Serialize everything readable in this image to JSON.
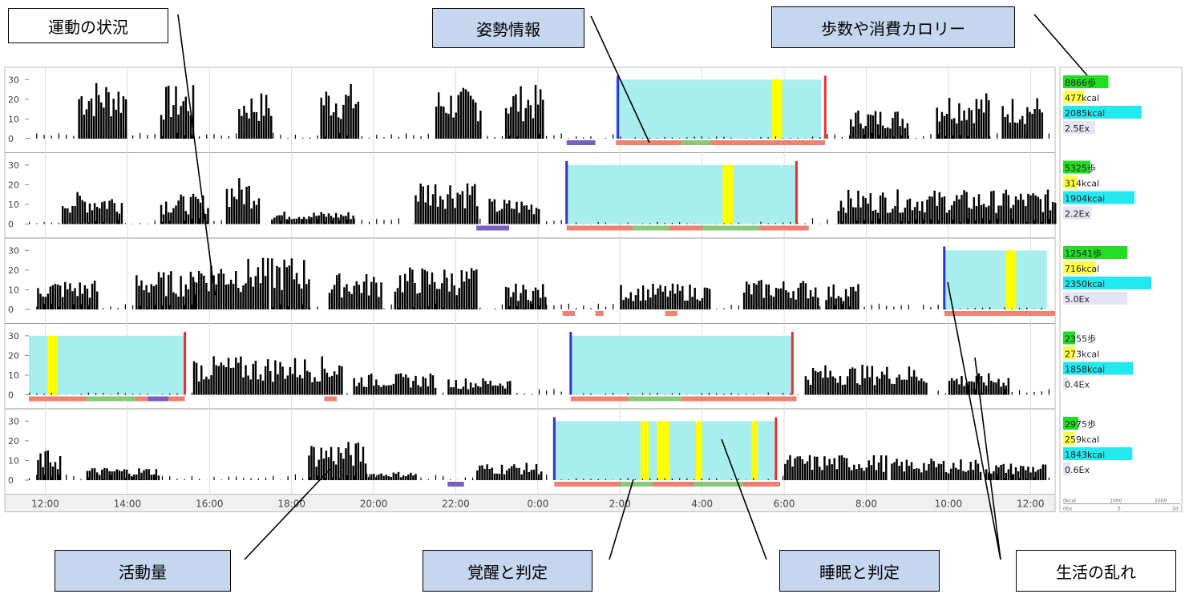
{
  "callouts": {
    "exercise_status": "運動の状況",
    "posture_info": "姿勢情報",
    "steps_calories": "歩数や消費カロリー",
    "activity_amount": "活動量",
    "wake_judgment": "覚醒と判定",
    "sleep_judgment": "睡眠と判定",
    "life_disorder": "生活の乱れ"
  },
  "colors": {
    "activity": "#000000",
    "sleep_band": "#a8eeee",
    "wake_event": "#ffff00",
    "sleep_start": "#3333cc",
    "sleep_end": "#e83030",
    "posture_lying": "#f08070",
    "posture_sitting": "#88c878",
    "posture_other": "#7a5fc0",
    "steps_bar": "#22dd22",
    "active_kcal_bar": "#ffff44",
    "total_kcal_bar": "#22e8f0",
    "ex_bar": "#e4e4f4"
  },
  "legend_scale": {
    "left": "0kcal",
    "mid": "1000",
    "right": "2000",
    "sub_left": "0Ex",
    "sub_mid": "5",
    "sub_right": "10"
  },
  "chart_data": {
    "type": "bar",
    "x_axis_ticks": [
      "12:00",
      "14:00",
      "16:00",
      "18:00",
      "20:00",
      "22:00",
      "0:00",
      "2:00",
      "4:00",
      "6:00",
      "8:00",
      "10:00",
      "12:00"
    ],
    "x_range_hours": [
      11.6,
      36.6
    ],
    "y_ticks": [
      "30",
      "20",
      "10",
      "0"
    ],
    "ylim": [
      0,
      33
    ],
    "grid": true,
    "days": [
      {
        "steps": "8866歩",
        "active_kcal": "477kcal",
        "total_kcal": "2085kcal",
        "ex": "2.5Ex",
        "steps_value": 8866,
        "active_kcal_value": 477,
        "total_kcal_value": 2085,
        "ex_value": 2.5,
        "sleep": [
          25.9,
          30.9
        ],
        "sleep_start_marker": 25.95,
        "sleep_end_marker": 31.0,
        "wake_events": [
          [
            29.7,
            29.95
          ]
        ],
        "activity_bursts": [
          [
            12.8,
            1.2,
            28
          ],
          [
            14.8,
            0.8,
            25
          ],
          [
            16.7,
            0.8,
            22
          ],
          [
            18.7,
            0.9,
            26
          ],
          [
            21.5,
            1.1,
            24
          ],
          [
            23.2,
            0.9,
            25
          ],
          [
            31.6,
            1.4,
            14
          ],
          [
            33.7,
            1.3,
            22
          ],
          [
            35.3,
            1.0,
            20
          ]
        ],
        "posture": [
          [
            24.7,
            25.4,
            "other"
          ],
          [
            25.9,
            31.0,
            "lying"
          ],
          [
            27.5,
            28.2,
            "sitting"
          ]
        ]
      },
      {
        "steps": "5325歩",
        "active_kcal": "314kcal",
        "total_kcal": "1904kcal",
        "ex": "2.2Ex",
        "steps_value": 5325,
        "active_kcal_value": 314,
        "total_kcal_value": 1904,
        "ex_value": 2.2,
        "sleep": [
          24.7,
          30.3
        ],
        "sleep_start_marker": 24.7,
        "sleep_end_marker": 30.3,
        "wake_events": [
          [
            28.5,
            28.75
          ]
        ],
        "activity_bursts": [
          [
            12.4,
            1.5,
            15
          ],
          [
            14.8,
            1.2,
            14
          ],
          [
            16.4,
            0.8,
            22
          ],
          [
            17.5,
            2.0,
            6
          ],
          [
            21.0,
            1.5,
            22
          ],
          [
            22.8,
            1.2,
            12
          ],
          [
            31.3,
            5.3,
            16
          ]
        ],
        "posture": [
          [
            22.5,
            23.3,
            "other"
          ],
          [
            24.7,
            30.6,
            "lying"
          ],
          [
            26.3,
            27.2,
            "sitting"
          ],
          [
            28.0,
            29.4,
            "sitting"
          ]
        ]
      },
      {
        "steps": "12541歩",
        "active_kcal": "716kcal",
        "total_kcal": "2350kcal",
        "ex": "5.0Ex",
        "steps_value": 12541,
        "active_kcal_value": 716,
        "total_kcal_value": 2350,
        "ex_value": 5.0,
        "sleep": [
          33.9,
          36.4
        ],
        "sleep_start_marker": 33.9,
        "sleep_end_marker": null,
        "wake_events": [
          [
            35.4,
            35.65
          ]
        ],
        "activity_bursts": [
          [
            11.8,
            1.5,
            14
          ],
          [
            14.2,
            1.5,
            18
          ],
          [
            15.6,
            1.8,
            24
          ],
          [
            17.5,
            0.9,
            25
          ],
          [
            18.9,
            1.3,
            17
          ],
          [
            20.5,
            2.0,
            20
          ],
          [
            23.2,
            1.0,
            12
          ],
          [
            26.0,
            2.2,
            12
          ],
          [
            29.0,
            1.8,
            14
          ],
          [
            31.0,
            0.8,
            12
          ]
        ],
        "posture": [
          [
            24.6,
            24.9,
            "lying"
          ],
          [
            25.4,
            25.6,
            "lying"
          ],
          [
            27.1,
            27.4,
            "lying"
          ],
          [
            33.9,
            36.6,
            "lying"
          ]
        ]
      },
      {
        "steps": "2355歩",
        "active_kcal": "273kcal",
        "total_kcal": "1858kcal",
        "ex": "0.4Ex",
        "steps_value": 2355,
        "active_kcal_value": 273,
        "total_kcal_value": 1858,
        "ex_value": 0.4,
        "sleep": [
          11.6,
          15.4
        ],
        "sleep_start_marker": null,
        "sleep_end_marker": 15.4,
        "wake_events": [
          [
            12.05,
            12.3
          ]
        ],
        "sleep2": [
          24.8,
          30.2
        ],
        "sleep2_start_marker": 24.8,
        "sleep2_end_marker": 30.2,
        "activity_bursts": [
          [
            15.6,
            3.6,
            18
          ],
          [
            19.5,
            2.0,
            10
          ],
          [
            21.8,
            1.5,
            8
          ],
          [
            30.5,
            3.0,
            14
          ],
          [
            34.0,
            1.5,
            10
          ]
        ],
        "posture": [
          [
            11.6,
            15.4,
            "lying"
          ],
          [
            13.0,
            14.2,
            "sitting"
          ],
          [
            14.5,
            15.0,
            "other"
          ],
          [
            18.8,
            19.1,
            "lying"
          ],
          [
            24.8,
            30.3,
            "lying"
          ],
          [
            26.2,
            27.5,
            "sitting"
          ]
        ]
      },
      {
        "steps": "2975歩",
        "active_kcal": "259kcal",
        "total_kcal": "1843kcal",
        "ex": "0.6Ex",
        "steps_value": 2975,
        "active_kcal_value": 259,
        "total_kcal_value": 1843,
        "ex_value": 0.6,
        "sleep": [
          24.4,
          29.8
        ],
        "sleep_start_marker": 24.4,
        "sleep_end_marker": 29.8,
        "wake_events": [
          [
            26.5,
            26.7
          ],
          [
            26.9,
            27.2
          ],
          [
            27.85,
            28.0
          ],
          [
            29.2,
            29.35
          ]
        ],
        "activity_bursts": [
          [
            11.8,
            0.6,
            14
          ],
          [
            13.0,
            1.8,
            6
          ],
          [
            18.4,
            1.4,
            18
          ],
          [
            19.8,
            1.2,
            4
          ],
          [
            22.5,
            1.6,
            8
          ],
          [
            30.0,
            2.5,
            12
          ],
          [
            32.6,
            2.2,
            10
          ],
          [
            34.9,
            1.5,
            8
          ]
        ],
        "posture": [
          [
            21.8,
            22.2,
            "other"
          ],
          [
            24.4,
            29.9,
            "lying"
          ],
          [
            26.0,
            26.8,
            "sitting"
          ],
          [
            27.8,
            29.0,
            "sitting"
          ]
        ]
      }
    ]
  }
}
